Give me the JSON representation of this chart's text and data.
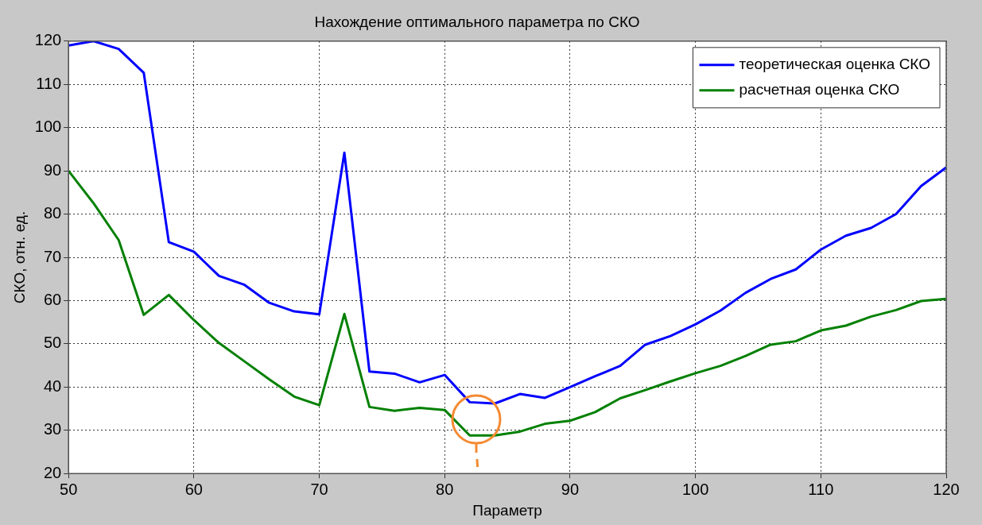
{
  "chart_data": {
    "type": "line",
    "title": "Нахождение оптимального параметра по СКО",
    "xlabel": "Параметр",
    "ylabel": "СКО, отн. ед.",
    "x": [
      50,
      52,
      54,
      56,
      58,
      60,
      62,
      64,
      66,
      68,
      70,
      72,
      74,
      76,
      78,
      80,
      82,
      84,
      86,
      88,
      90,
      92,
      94,
      96,
      98,
      100,
      102,
      104,
      106,
      108,
      110,
      112,
      114,
      116,
      118,
      120
    ],
    "series": [
      {
        "name": "теоретическая оценка СКО",
        "color": "#0000ff",
        "values": [
          119,
          120,
          118.2,
          112.7,
          73.5,
          71.3,
          65.7,
          63.7,
          59.5,
          57.5,
          56.8,
          94.2,
          43.6,
          43.1,
          41.1,
          42.8,
          36.5,
          36.2,
          38.4,
          37.5,
          40,
          42.5,
          44.9,
          49.8,
          51.8,
          54.5,
          57.7,
          61.8,
          65,
          67.2,
          71.8,
          75,
          76.8,
          80,
          86.5,
          90.8
        ]
      },
      {
        "name": "расчетная оценка СКО",
        "color": "#008000",
        "values": [
          90,
          82.5,
          74,
          56.7,
          61.3,
          55.5,
          50.2,
          46,
          41.8,
          37.8,
          35.8,
          56.9,
          35.4,
          34.5,
          35.2,
          34.7,
          28.8,
          28.8,
          29.7,
          31.5,
          32.2,
          34.2,
          37.4,
          39.3,
          41.3,
          43.2,
          44.9,
          47.2,
          49.8,
          50.6,
          53.1,
          54.2,
          56.3,
          57.8,
          59.9,
          60.4
        ]
      }
    ],
    "xlim": [
      50,
      120
    ],
    "xticks": [
      50,
      60,
      70,
      80,
      90,
      100,
      110,
      120
    ],
    "ylim": [
      20,
      120
    ],
    "yticks": [
      20,
      30,
      40,
      50,
      60,
      70,
      80,
      90,
      100,
      110,
      120
    ],
    "grid": true,
    "legend": "top right",
    "marker": "none",
    "line_style": "solid"
  }
}
